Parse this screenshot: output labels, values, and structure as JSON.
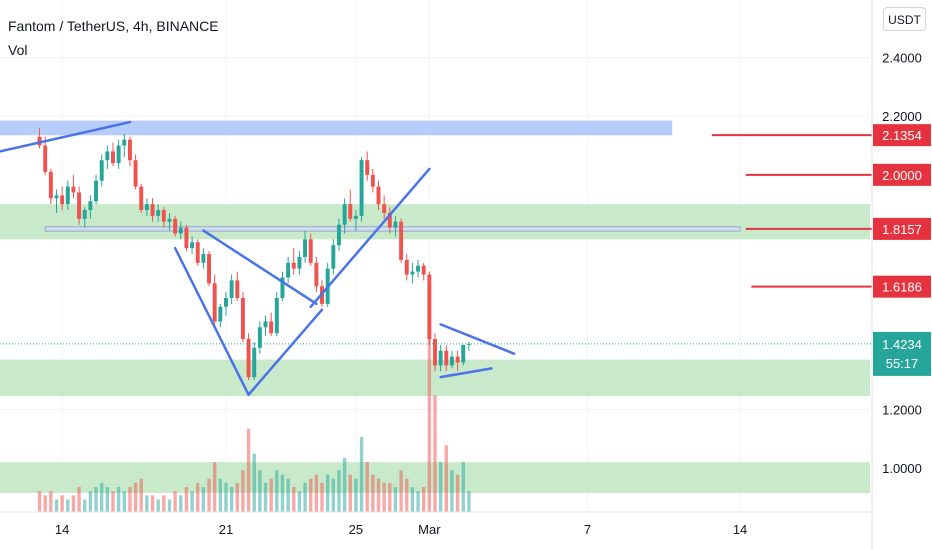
{
  "header": {
    "title": "Fantom / TetherUS, 4h, BINANCE",
    "indicator": "Vol",
    "currency": "USDT"
  },
  "colors": {
    "up": "#26a69a",
    "down": "#ef5350",
    "level_line": "#e5323e",
    "trendline": "#4a73e8",
    "zone_green": "#bfe6c1",
    "zone_blue": "#aec6fa",
    "last_price_bg": "#26a69a"
  },
  "y_axis": {
    "ticks": [
      {
        "label": "2.4000",
        "value": 2.4
      },
      {
        "label": "2.2000",
        "value": 2.2
      },
      {
        "label": "1.2000",
        "value": 1.2
      },
      {
        "label": "1.0000",
        "value": 1.0
      }
    ],
    "levels": [
      {
        "label": "2.1354",
        "value": 2.1354,
        "x0": 120
      },
      {
        "label": "2.0000",
        "value": 2.0,
        "x0": 126
      },
      {
        "label": "1.8157",
        "value": 1.8157,
        "x0": 126
      },
      {
        "label": "1.6186",
        "value": 1.6186,
        "x0": 127
      }
    ],
    "last_price": {
      "label": "1.4234",
      "value": 1.4234,
      "countdown": "55:17"
    }
  },
  "x_axis": {
    "ticks": [
      {
        "label": "14",
        "value": 5
      },
      {
        "label": "21",
        "value": 34
      },
      {
        "label": "25",
        "value": 57
      },
      {
        "label": "Mar",
        "value": 70
      },
      {
        "label": "7",
        "value": 98
      },
      {
        "label": "14",
        "value": 125
      }
    ]
  },
  "chart_data": {
    "type": "candlestick",
    "title": "Fantom / TetherUS, 4h, BINANCE",
    "y_unit": "USDT",
    "x_range": [
      -6,
      148
    ],
    "y_range": [
      0.85,
      2.46
    ],
    "candles": [
      [
        1,
        2.13,
        2.16,
        2.09,
        2.1,
        "down"
      ],
      [
        2,
        2.1,
        2.13,
        2.0,
        2.01,
        "down"
      ],
      [
        3,
        2.01,
        2.02,
        1.9,
        1.92,
        "down"
      ],
      [
        4,
        1.92,
        1.95,
        1.87,
        1.93,
        "up"
      ],
      [
        5,
        1.93,
        1.96,
        1.88,
        1.9,
        "down"
      ],
      [
        6,
        1.9,
        1.98,
        1.88,
        1.96,
        "up"
      ],
      [
        7,
        1.96,
        2.0,
        1.92,
        1.94,
        "down"
      ],
      [
        8,
        1.94,
        1.96,
        1.83,
        1.85,
        "down"
      ],
      [
        9,
        1.85,
        1.89,
        1.82,
        1.88,
        "up"
      ],
      [
        10,
        1.88,
        1.93,
        1.85,
        1.91,
        "up"
      ],
      [
        11,
        1.91,
        2.0,
        1.9,
        1.98,
        "up"
      ],
      [
        12,
        1.98,
        2.07,
        1.96,
        2.05,
        "up"
      ],
      [
        13,
        2.05,
        2.1,
        2.02,
        2.08,
        "up"
      ],
      [
        14,
        2.08,
        2.11,
        2.03,
        2.04,
        "down"
      ],
      [
        15,
        2.04,
        2.12,
        2.02,
        2.1,
        "up"
      ],
      [
        16,
        2.1,
        2.14,
        2.06,
        2.12,
        "up"
      ],
      [
        17,
        2.12,
        2.13,
        2.03,
        2.05,
        "down"
      ],
      [
        18,
        2.05,
        2.07,
        1.95,
        1.96,
        "down"
      ],
      [
        19,
        1.96,
        1.97,
        1.87,
        1.88,
        "down"
      ],
      [
        20,
        1.88,
        1.92,
        1.86,
        1.9,
        "up"
      ],
      [
        21,
        1.9,
        1.92,
        1.84,
        1.86,
        "down"
      ],
      [
        22,
        1.86,
        1.9,
        1.84,
        1.88,
        "up"
      ],
      [
        23,
        1.88,
        1.89,
        1.82,
        1.84,
        "down"
      ],
      [
        24,
        1.84,
        1.87,
        1.81,
        1.85,
        "up"
      ],
      [
        25,
        1.85,
        1.86,
        1.79,
        1.8,
        "down"
      ],
      [
        26,
        1.8,
        1.84,
        1.78,
        1.82,
        "up"
      ],
      [
        27,
        1.82,
        1.83,
        1.74,
        1.75,
        "down"
      ],
      [
        28,
        1.75,
        1.79,
        1.73,
        1.77,
        "up"
      ],
      [
        29,
        1.77,
        1.78,
        1.69,
        1.7,
        "down"
      ],
      [
        30,
        1.7,
        1.75,
        1.68,
        1.73,
        "up"
      ],
      [
        31,
        1.73,
        1.74,
        1.62,
        1.63,
        "down"
      ],
      [
        32,
        1.63,
        1.66,
        1.49,
        1.5,
        "down"
      ],
      [
        33,
        1.5,
        1.56,
        1.48,
        1.55,
        "up"
      ],
      [
        34,
        1.55,
        1.6,
        1.52,
        1.58,
        "up"
      ],
      [
        35,
        1.58,
        1.66,
        1.56,
        1.64,
        "up"
      ],
      [
        36,
        1.64,
        1.67,
        1.57,
        1.58,
        "down"
      ],
      [
        37,
        1.58,
        1.6,
        1.43,
        1.44,
        "down"
      ],
      [
        38,
        1.44,
        1.46,
        1.3,
        1.31,
        "down"
      ],
      [
        39,
        1.31,
        1.43,
        1.3,
        1.41,
        "up"
      ],
      [
        40,
        1.41,
        1.5,
        1.39,
        1.48,
        "up"
      ],
      [
        41,
        1.48,
        1.52,
        1.45,
        1.5,
        "up"
      ],
      [
        42,
        1.5,
        1.53,
        1.45,
        1.46,
        "down"
      ],
      [
        43,
        1.46,
        1.6,
        1.45,
        1.58,
        "up"
      ],
      [
        44,
        1.58,
        1.67,
        1.57,
        1.65,
        "up"
      ],
      [
        45,
        1.65,
        1.72,
        1.63,
        1.7,
        "up"
      ],
      [
        46,
        1.7,
        1.75,
        1.66,
        1.68,
        "down"
      ],
      [
        47,
        1.68,
        1.74,
        1.66,
        1.72,
        "up"
      ],
      [
        48,
        1.72,
        1.81,
        1.7,
        1.78,
        "up"
      ],
      [
        49,
        1.78,
        1.8,
        1.69,
        1.7,
        "down"
      ],
      [
        50,
        1.7,
        1.72,
        1.6,
        1.62,
        "down"
      ],
      [
        51,
        1.62,
        1.64,
        1.55,
        1.56,
        "down"
      ],
      [
        52,
        1.56,
        1.7,
        1.55,
        1.68,
        "up"
      ],
      [
        53,
        1.68,
        1.78,
        1.66,
        1.76,
        "up"
      ],
      [
        54,
        1.76,
        1.85,
        1.74,
        1.83,
        "up"
      ],
      [
        55,
        1.83,
        1.92,
        1.8,
        1.9,
        "up"
      ],
      [
        56,
        1.9,
        1.95,
        1.84,
        1.85,
        "down"
      ],
      [
        57,
        1.85,
        1.88,
        1.81,
        1.86,
        "up"
      ],
      [
        58,
        1.86,
        2.06,
        1.84,
        2.05,
        "up"
      ],
      [
        59,
        2.05,
        2.08,
        1.98,
        2.0,
        "down"
      ],
      [
        60,
        2.0,
        2.02,
        1.94,
        1.96,
        "down"
      ],
      [
        61,
        1.96,
        1.98,
        1.88,
        1.9,
        "down"
      ],
      [
        62,
        1.9,
        1.93,
        1.85,
        1.87,
        "down"
      ],
      [
        63,
        1.87,
        1.89,
        1.8,
        1.82,
        "down"
      ],
      [
        64,
        1.82,
        1.86,
        1.79,
        1.84,
        "up"
      ],
      [
        65,
        1.84,
        1.85,
        1.7,
        1.71,
        "down"
      ],
      [
        66,
        1.71,
        1.73,
        1.64,
        1.66,
        "down"
      ],
      [
        67,
        1.66,
        1.7,
        1.63,
        1.67,
        "up"
      ],
      [
        68,
        1.67,
        1.71,
        1.65,
        1.69,
        "up"
      ],
      [
        69,
        1.69,
        1.7,
        1.64,
        1.66,
        "down"
      ],
      [
        70,
        1.66,
        1.67,
        1.42,
        1.44,
        "down"
      ],
      [
        71,
        1.44,
        1.46,
        1.33,
        1.35,
        "down"
      ],
      [
        72,
        1.35,
        1.42,
        1.33,
        1.4,
        "up"
      ],
      [
        73,
        1.4,
        1.42,
        1.33,
        1.35,
        "down"
      ],
      [
        74,
        1.35,
        1.4,
        1.34,
        1.38,
        "up"
      ],
      [
        75,
        1.38,
        1.4,
        1.33,
        1.36,
        "down"
      ],
      [
        76,
        1.36,
        1.42,
        1.35,
        1.42,
        "up"
      ],
      [
        77,
        1.42,
        1.43,
        1.4,
        1.4234,
        "up"
      ]
    ],
    "volume": [
      [
        1,
        0.05,
        "down"
      ],
      [
        2,
        0.04,
        "down"
      ],
      [
        3,
        0.05,
        "down"
      ],
      [
        4,
        0.03,
        "up"
      ],
      [
        5,
        0.04,
        "down"
      ],
      [
        6,
        0.03,
        "up"
      ],
      [
        7,
        0.04,
        "down"
      ],
      [
        8,
        0.06,
        "down"
      ],
      [
        9,
        0.03,
        "up"
      ],
      [
        10,
        0.05,
        "up"
      ],
      [
        11,
        0.06,
        "up"
      ],
      [
        12,
        0.07,
        "up"
      ],
      [
        13,
        0.06,
        "up"
      ],
      [
        14,
        0.05,
        "down"
      ],
      [
        15,
        0.06,
        "up"
      ],
      [
        16,
        0.05,
        "up"
      ],
      [
        17,
        0.06,
        "down"
      ],
      [
        18,
        0.07,
        "down"
      ],
      [
        19,
        0.08,
        "down"
      ],
      [
        20,
        0.04,
        "up"
      ],
      [
        21,
        0.04,
        "down"
      ],
      [
        22,
        0.03,
        "up"
      ],
      [
        23,
        0.04,
        "down"
      ],
      [
        24,
        0.03,
        "up"
      ],
      [
        25,
        0.05,
        "down"
      ],
      [
        26,
        0.04,
        "up"
      ],
      [
        27,
        0.06,
        "down"
      ],
      [
        28,
        0.05,
        "up"
      ],
      [
        29,
        0.07,
        "down"
      ],
      [
        30,
        0.06,
        "up"
      ],
      [
        31,
        0.08,
        "down"
      ],
      [
        32,
        0.12,
        "down"
      ],
      [
        33,
        0.08,
        "up"
      ],
      [
        34,
        0.07,
        "up"
      ],
      [
        35,
        0.06,
        "up"
      ],
      [
        36,
        0.07,
        "down"
      ],
      [
        37,
        0.1,
        "down"
      ],
      [
        38,
        0.2,
        "down"
      ],
      [
        39,
        0.14,
        "up"
      ],
      [
        40,
        0.1,
        "up"
      ],
      [
        41,
        0.07,
        "up"
      ],
      [
        42,
        0.08,
        "down"
      ],
      [
        43,
        0.1,
        "up"
      ],
      [
        44,
        0.09,
        "up"
      ],
      [
        45,
        0.08,
        "up"
      ],
      [
        46,
        0.06,
        "down"
      ],
      [
        47,
        0.05,
        "up"
      ],
      [
        48,
        0.07,
        "up"
      ],
      [
        49,
        0.08,
        "down"
      ],
      [
        50,
        0.09,
        "down"
      ],
      [
        51,
        0.07,
        "down"
      ],
      [
        52,
        0.09,
        "up"
      ],
      [
        53,
        0.08,
        "up"
      ],
      [
        54,
        0.1,
        "up"
      ],
      [
        55,
        0.13,
        "up"
      ],
      [
        56,
        0.09,
        "down"
      ],
      [
        57,
        0.08,
        "up"
      ],
      [
        58,
        0.18,
        "up"
      ],
      [
        59,
        0.12,
        "down"
      ],
      [
        60,
        0.09,
        "down"
      ],
      [
        61,
        0.08,
        "down"
      ],
      [
        62,
        0.07,
        "down"
      ],
      [
        63,
        0.07,
        "down"
      ],
      [
        64,
        0.06,
        "up"
      ],
      [
        65,
        0.1,
        "down"
      ],
      [
        66,
        0.08,
        "down"
      ],
      [
        67,
        0.06,
        "up"
      ],
      [
        68,
        0.05,
        "up"
      ],
      [
        69,
        0.06,
        "down"
      ],
      [
        70,
        0.42,
        "down"
      ],
      [
        71,
        0.28,
        "down"
      ],
      [
        72,
        0.12,
        "up"
      ],
      [
        73,
        0.16,
        "down"
      ],
      [
        74,
        0.1,
        "up"
      ],
      [
        75,
        0.09,
        "down"
      ],
      [
        76,
        0.12,
        "up"
      ],
      [
        77,
        0.05,
        "up"
      ]
    ],
    "zones": [
      {
        "kind": "resistance",
        "color": "blue",
        "y_low": 2.135,
        "y_high": 2.185,
        "x_from": -6,
        "x_to": 113
      },
      {
        "kind": "support",
        "color": "green",
        "y_low": 1.78,
        "y_high": 1.9,
        "x_from": -6,
        "x_to": 148
      },
      {
        "kind": "range",
        "color": "blue-outline",
        "y_low": 1.808,
        "y_high": 1.823,
        "x_from": 2,
        "x_to": 125
      },
      {
        "kind": "support",
        "color": "green",
        "y_low": 1.245,
        "y_high": 1.37,
        "x_from": -6,
        "x_to": 148
      },
      {
        "kind": "support",
        "color": "green",
        "y_low": 0.915,
        "y_high": 1.02,
        "x_from": -6,
        "x_to": 148
      }
    ],
    "trendlines": [
      [
        [
          -6,
          2.08
        ],
        [
          17,
          2.18
        ]
      ],
      [
        [
          25,
          1.75
        ],
        [
          38,
          1.25
        ]
      ],
      [
        [
          38,
          1.25
        ],
        [
          51,
          1.54
        ]
      ],
      [
        [
          30,
          1.81
        ],
        [
          50,
          1.56
        ]
      ],
      [
        [
          49,
          1.55
        ],
        [
          70,
          2.02
        ]
      ],
      [
        [
          72,
          1.49
        ],
        [
          85,
          1.39
        ]
      ],
      [
        [
          72,
          1.31
        ],
        [
          81,
          1.34
        ]
      ]
    ]
  }
}
